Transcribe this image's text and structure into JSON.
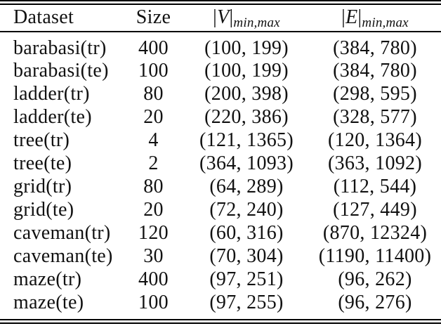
{
  "colors": {
    "text": "#111111",
    "rule": "#000000",
    "background": "#ffffff"
  },
  "table": {
    "header": {
      "dataset": "Dataset",
      "size": "Size",
      "v_bar_open": "|",
      "v_letter": "V",
      "v_bar_close": "|",
      "v_subscript": "min,max",
      "e_bar_open": "|",
      "e_letter": "E",
      "e_bar_close": "|",
      "e_subscript": "min,max"
    },
    "rows": [
      {
        "dataset": "barabasi(tr)",
        "size": "400",
        "v_minmax": "(100, 199)",
        "e_minmax": "(384, 780)"
      },
      {
        "dataset": "barabasi(te)",
        "size": "100",
        "v_minmax": "(100, 199)",
        "e_minmax": "(384, 780)"
      },
      {
        "dataset": "ladder(tr)",
        "size": "80",
        "v_minmax": "(200, 398)",
        "e_minmax": "(298, 595)"
      },
      {
        "dataset": "ladder(te)",
        "size": "20",
        "v_minmax": "(220, 386)",
        "e_minmax": "(328, 577)"
      },
      {
        "dataset": "tree(tr)",
        "size": "4",
        "v_minmax": "(121, 1365)",
        "e_minmax": "(120, 1364)"
      },
      {
        "dataset": "tree(te)",
        "size": "2",
        "v_minmax": "(364, 1093)",
        "e_minmax": "(363, 1092)"
      },
      {
        "dataset": "grid(tr)",
        "size": "80",
        "v_minmax": "(64, 289)",
        "e_minmax": "(112, 544)"
      },
      {
        "dataset": "grid(te)",
        "size": "20",
        "v_minmax": "(72, 240)",
        "e_minmax": "(127, 449)"
      },
      {
        "dataset": "caveman(tr)",
        "size": "120",
        "v_minmax": "(60, 316)",
        "e_minmax": "(870, 12324)"
      },
      {
        "dataset": "caveman(te)",
        "size": "30",
        "v_minmax": "(70, 304)",
        "e_minmax": "(1190, 11400)"
      },
      {
        "dataset": "maze(tr)",
        "size": "400",
        "v_minmax": "(97, 251)",
        "e_minmax": "(96, 262)"
      },
      {
        "dataset": "maze(te)",
        "size": "100",
        "v_minmax": "(97, 255)",
        "e_minmax": "(96, 276)"
      }
    ]
  }
}
